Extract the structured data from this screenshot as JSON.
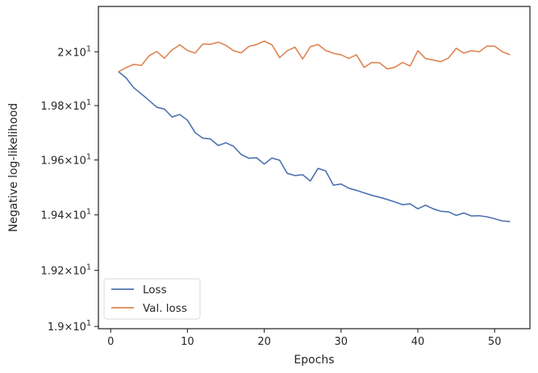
{
  "chart_data": {
    "type": "line",
    "xlabel": "Epochs",
    "ylabel": "Negative log-likelihood",
    "xlim": [
      -1.6,
      54.6
    ],
    "ylim": [
      18.992,
      20.17
    ],
    "yscale": "log",
    "grid": false,
    "legend_position": "lower-left",
    "x_ticks": [
      0,
      10,
      20,
      30,
      40,
      50
    ],
    "y_ticks": [
      {
        "value": 19.0,
        "mantissa": "1.9",
        "base": "10",
        "exp": "1"
      },
      {
        "value": 19.2,
        "mantissa": "1.92",
        "base": "10",
        "exp": "1"
      },
      {
        "value": 19.4,
        "mantissa": "1.94",
        "base": "10",
        "exp": "1"
      },
      {
        "value": 19.6,
        "mantissa": "1.96",
        "base": "10",
        "exp": "1"
      },
      {
        "value": 19.8,
        "mantissa": "1.98",
        "base": "10",
        "exp": "1"
      },
      {
        "value": 20.0,
        "mantissa": "2",
        "base": "10",
        "exp": "1"
      }
    ],
    "series": [
      {
        "name": "Loss",
        "color": "#4c72b0",
        "x": [
          1,
          2,
          3,
          4,
          5,
          6,
          7,
          8,
          9,
          10,
          11,
          12,
          13,
          14,
          15,
          16,
          17,
          18,
          19,
          20,
          21,
          22,
          23,
          24,
          25,
          26,
          27,
          28,
          29,
          30,
          31,
          32,
          33,
          34,
          35,
          36,
          37,
          38,
          39,
          40,
          41,
          42,
          43,
          44,
          45,
          46,
          47,
          48,
          49,
          50,
          51,
          52
        ],
        "y": [
          19.926,
          19.903,
          19.866,
          19.843,
          19.819,
          19.794,
          19.787,
          19.758,
          19.767,
          19.746,
          19.7,
          19.68,
          19.677,
          19.653,
          19.663,
          19.65,
          19.62,
          19.606,
          19.608,
          19.585,
          19.607,
          19.599,
          19.551,
          19.543,
          19.546,
          19.523,
          19.569,
          19.56,
          19.508,
          19.512,
          19.497,
          19.489,
          19.48,
          19.471,
          19.464,
          19.456,
          19.447,
          19.437,
          19.44,
          19.422,
          19.435,
          19.422,
          19.413,
          19.411,
          19.398,
          19.407,
          19.396,
          19.397,
          19.393,
          19.386,
          19.378,
          19.376
        ]
      },
      {
        "name": "Val. loss",
        "color": "#dd8452",
        "x": [
          1,
          2,
          3,
          4,
          5,
          6,
          7,
          8,
          9,
          10,
          11,
          12,
          13,
          14,
          15,
          16,
          17,
          18,
          19,
          20,
          21,
          22,
          23,
          24,
          25,
          26,
          27,
          28,
          29,
          30,
          31,
          32,
          33,
          34,
          35,
          36,
          37,
          38,
          39,
          40,
          41,
          42,
          43,
          44,
          45,
          46,
          47,
          48,
          49,
          50,
          51,
          52
        ],
        "y": [
          19.925,
          19.941,
          19.953,
          19.949,
          19.985,
          20.001,
          19.976,
          20.007,
          20.026,
          20.005,
          19.995,
          20.029,
          20.028,
          20.036,
          20.024,
          20.004,
          19.996,
          20.02,
          20.027,
          20.04,
          20.026,
          19.978,
          20.004,
          20.017,
          19.973,
          20.019,
          20.027,
          20.005,
          19.994,
          19.989,
          19.975,
          19.989,
          19.942,
          19.96,
          19.959,
          19.936,
          19.942,
          19.96,
          19.947,
          20.004,
          19.975,
          19.969,
          19.963,
          19.977,
          20.013,
          19.995,
          20.004,
          20.0,
          20.021,
          20.021,
          20.0,
          19.989
        ]
      }
    ]
  }
}
